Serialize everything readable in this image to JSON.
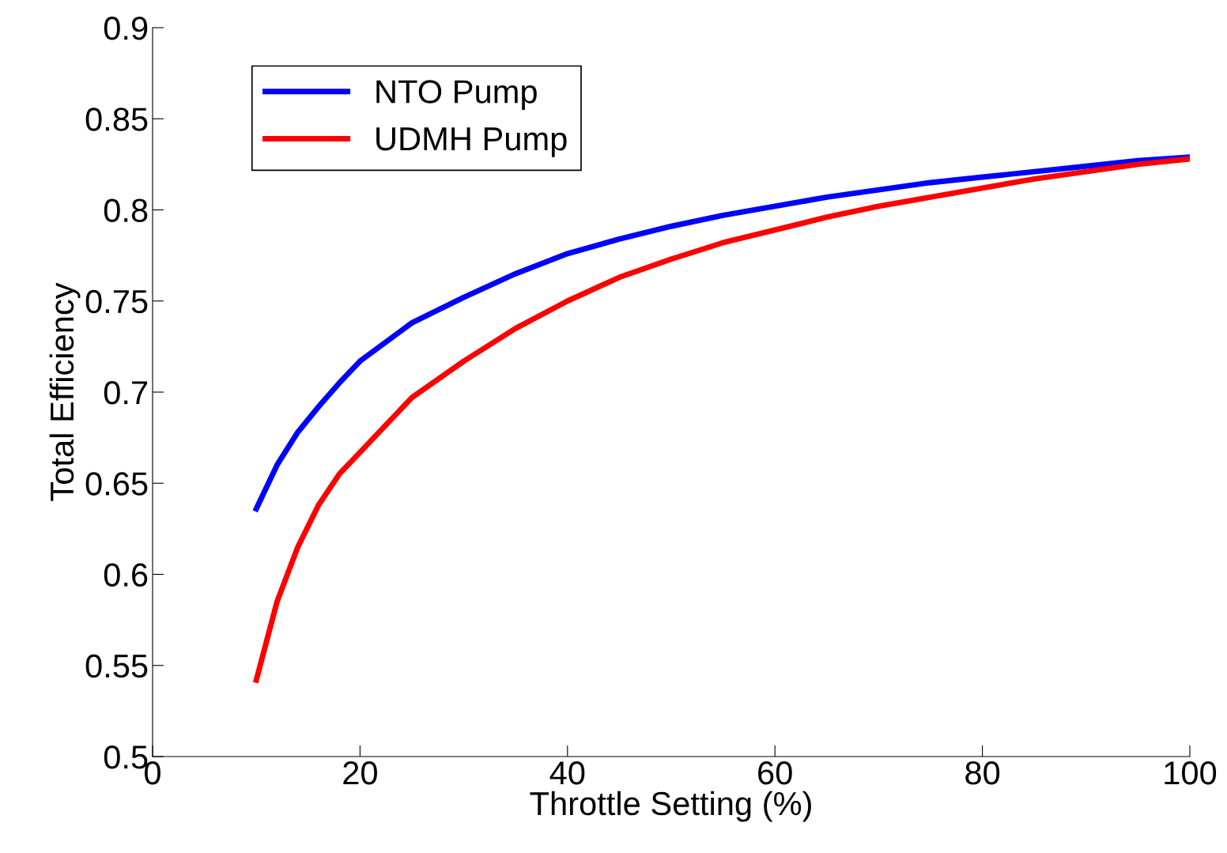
{
  "chart_data": {
    "type": "line",
    "xlabel": "Throttle Setting (%)",
    "ylabel": "Total Efficiency",
    "xlim": [
      0,
      100
    ],
    "xticks": [
      0,
      20,
      40,
      60,
      80,
      100
    ],
    "ylim": [
      0.5,
      0.9
    ],
    "yticks": [
      0.5,
      0.55,
      0.6,
      0.65,
      0.7,
      0.75,
      0.8,
      0.85,
      0.9
    ],
    "grid": false,
    "legend": "top left",
    "marker": "none",
    "line_style": "solid",
    "x": [
      10,
      12,
      14,
      16,
      18,
      20,
      25,
      30,
      35,
      40,
      45,
      50,
      55,
      60,
      65,
      70,
      75,
      80,
      85,
      90,
      95,
      100
    ],
    "series": [
      {
        "name": "NTO Pump",
        "color": "#0000ff",
        "values": [
          0.636,
          0.66,
          0.678,
          0.692,
          0.705,
          0.717,
          0.738,
          0.752,
          0.765,
          0.776,
          0.784,
          0.791,
          0.797,
          0.802,
          0.807,
          0.811,
          0.815,
          0.818,
          0.821,
          0.824,
          0.827,
          0.829
        ]
      },
      {
        "name": "UDMH Pump",
        "color": "#ff0000",
        "values": [
          0.542,
          0.585,
          0.615,
          0.638,
          0.655,
          0.667,
          0.697,
          0.717,
          0.735,
          0.75,
          0.763,
          0.773,
          0.782,
          0.789,
          0.796,
          0.802,
          0.807,
          0.812,
          0.817,
          0.821,
          0.825,
          0.828
        ]
      }
    ]
  }
}
